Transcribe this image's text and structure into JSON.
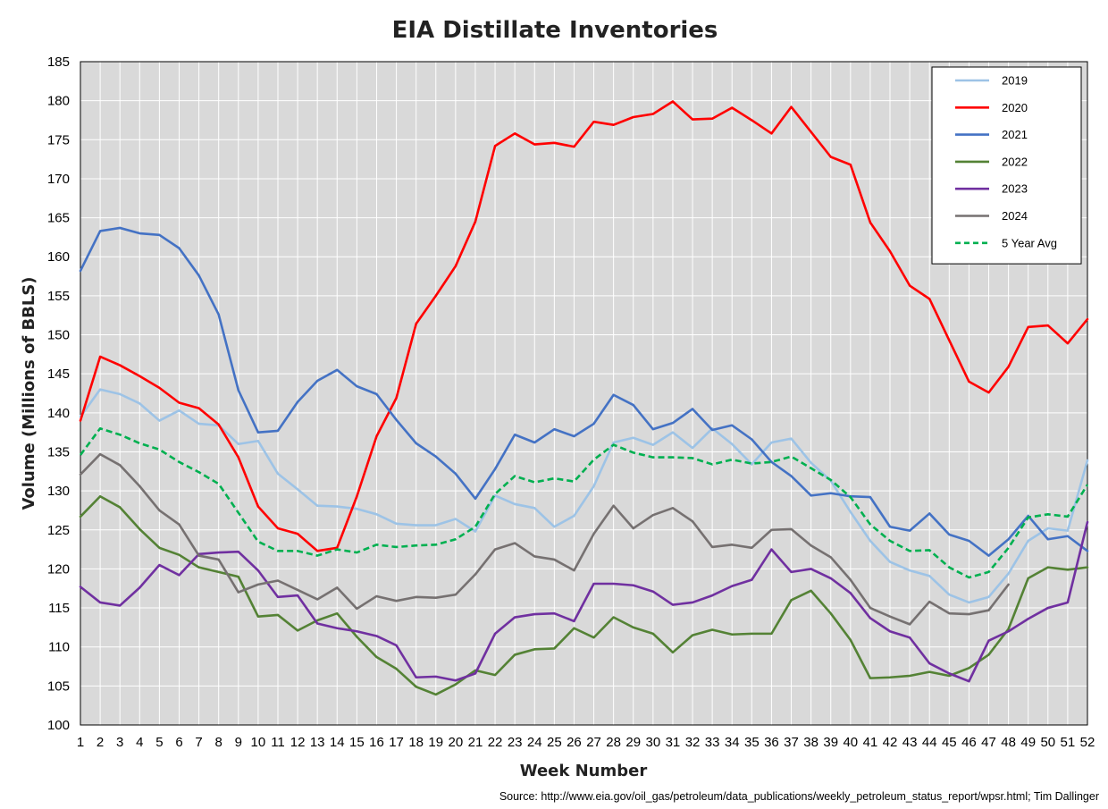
{
  "chart_data": {
    "type": "line",
    "title": "EIA Distillate Inventories",
    "xlabel": "Week Number",
    "ylabel": "Volume (Millions of BBLS)",
    "source": "Source: http://www.eia.gov/oil_gas/petroleum/data_publications/weekly_petroleum_status_report/wpsr.html; Tim Dallinger",
    "xlim": [
      1,
      52
    ],
    "ylim": [
      100,
      185
    ],
    "ytick_step": 5,
    "grid": true,
    "legend_position": "top-right",
    "x": [
      1,
      2,
      3,
      4,
      5,
      6,
      7,
      8,
      9,
      10,
      11,
      12,
      13,
      14,
      15,
      16,
      17,
      18,
      19,
      20,
      21,
      22,
      23,
      24,
      25,
      26,
      27,
      28,
      29,
      30,
      31,
      32,
      33,
      34,
      35,
      36,
      37,
      38,
      39,
      40,
      41,
      42,
      43,
      44,
      45,
      46,
      47,
      48,
      49,
      50,
      51,
      52
    ],
    "series": [
      {
        "name": "2019",
        "color": "#9dc3e6",
        "dash": false,
        "values": [
          139.5,
          143.0,
          142.4,
          141.2,
          139.0,
          140.3,
          138.6,
          138.4,
          136.0,
          136.4,
          132.2,
          130.2,
          128.1,
          128.0,
          127.7,
          127.0,
          125.8,
          125.6,
          125.6,
          126.4,
          124.8,
          129.4,
          128.3,
          127.8,
          125.4,
          126.8,
          130.6,
          136.2,
          136.8,
          135.9,
          137.5,
          135.5,
          138.0,
          136.0,
          133.4,
          136.2,
          136.7,
          133.6,
          131.3,
          127.3,
          123.6,
          120.9,
          119.8,
          119.1,
          116.7,
          115.7,
          116.4,
          119.4,
          123.6,
          125.2,
          124.9,
          133.9
        ]
      },
      {
        "name": "2020",
        "color": "#ff0000",
        "dash": false,
        "values": [
          139.0,
          147.2,
          146.1,
          144.7,
          143.2,
          141.3,
          140.6,
          138.5,
          134.3,
          128.0,
          125.2,
          124.5,
          122.3,
          122.7,
          129.3,
          137.0,
          141.9,
          151.4,
          155.0,
          158.8,
          164.5,
          174.2,
          175.8,
          174.4,
          174.6,
          174.1,
          177.3,
          176.9,
          177.9,
          178.3,
          179.9,
          177.6,
          177.7,
          179.1,
          177.5,
          175.8,
          179.2,
          176.0,
          172.8,
          171.8,
          164.4,
          160.7,
          156.3,
          154.6,
          149.3,
          144.0,
          142.6,
          145.9,
          151.0,
          151.2,
          148.9,
          152.0
        ]
      },
      {
        "name": "2021",
        "color": "#4472c4",
        "dash": false,
        "values": [
          158.2,
          163.3,
          163.7,
          163.0,
          162.8,
          161.1,
          157.6,
          152.6,
          142.9,
          137.5,
          137.7,
          141.4,
          144.1,
          145.5,
          143.4,
          142.4,
          139.1,
          136.1,
          134.4,
          132.2,
          129.0,
          132.8,
          137.2,
          136.2,
          137.9,
          137.0,
          138.6,
          142.3,
          141.0,
          137.9,
          138.7,
          140.5,
          137.8,
          138.4,
          136.6,
          133.7,
          131.9,
          129.4,
          129.7,
          129.3,
          129.2,
          125.4,
          124.9,
          127.1,
          124.4,
          123.6,
          121.7,
          123.8,
          126.8,
          123.8,
          124.2,
          122.3
        ]
      },
      {
        "name": "2022",
        "color": "#548235",
        "dash": false,
        "values": [
          126.7,
          129.3,
          127.9,
          125.1,
          122.7,
          121.8,
          120.2,
          119.6,
          119.0,
          113.9,
          114.1,
          112.1,
          113.4,
          114.3,
          111.3,
          108.7,
          107.2,
          104.9,
          103.9,
          105.2,
          107.0,
          106.4,
          109.0,
          109.7,
          109.8,
          112.4,
          111.2,
          113.8,
          112.5,
          111.7,
          109.3,
          111.5,
          112.2,
          111.6,
          111.7,
          111.7,
          116.0,
          117.2,
          114.3,
          110.9,
          106.0,
          106.1,
          106.3,
          106.8,
          106.3,
          107.3,
          109.0,
          112.3,
          118.8,
          120.2,
          119.9,
          120.2
        ]
      },
      {
        "name": "2023",
        "color": "#7030a0",
        "dash": false,
        "values": [
          117.7,
          115.7,
          115.3,
          117.6,
          120.5,
          119.2,
          121.9,
          122.1,
          122.2,
          119.8,
          116.4,
          116.6,
          113.0,
          112.4,
          112.0,
          111.4,
          110.2,
          106.1,
          106.2,
          105.7,
          106.6,
          111.7,
          113.8,
          114.2,
          114.3,
          113.3,
          118.1,
          118.1,
          117.9,
          117.1,
          115.4,
          115.7,
          116.6,
          117.8,
          118.6,
          122.5,
          119.6,
          120.0,
          118.8,
          116.9,
          113.7,
          112.0,
          111.2,
          107.9,
          106.6,
          105.6,
          110.8,
          112.0,
          113.6,
          115.0,
          115.7,
          126.0
        ]
      },
      {
        "name": "2024",
        "color": "#767171",
        "dash": false,
        "values": [
          132.1,
          134.7,
          133.3,
          130.6,
          127.5,
          125.7,
          121.7,
          121.2,
          117.0,
          118.0,
          118.5,
          117.3,
          116.1,
          117.6,
          114.9,
          116.5,
          115.9,
          116.4,
          116.3,
          116.7,
          119.3,
          122.5,
          123.3,
          121.6,
          121.2,
          119.8,
          124.5,
          128.1,
          125.2,
          126.9,
          127.8,
          126.1,
          122.8,
          123.1,
          122.7,
          125.0,
          125.1,
          123.0,
          121.5,
          118.6,
          115.0,
          113.9,
          112.9,
          115.8,
          114.3,
          114.2,
          114.7,
          118.0,
          null,
          null,
          null,
          null
        ]
      },
      {
        "name": "5 Year Avg",
        "color": "#00b050",
        "dash": true,
        "values": [
          134.6,
          138.0,
          137.2,
          136.1,
          135.3,
          133.7,
          132.4,
          130.9,
          127.2,
          123.5,
          122.3,
          122.3,
          121.7,
          122.5,
          122.1,
          123.1,
          122.8,
          123.0,
          123.1,
          123.8,
          125.4,
          129.6,
          131.9,
          131.1,
          131.6,
          131.2,
          134.0,
          135.9,
          134.9,
          134.3,
          134.3,
          134.2,
          133.4,
          134.0,
          133.5,
          133.7,
          134.4,
          132.9,
          131.4,
          129.2,
          125.7,
          123.6,
          122.3,
          122.4,
          120.2,
          118.9,
          119.6,
          122.7,
          126.6,
          127.0,
          126.7,
          130.8
        ]
      }
    ]
  }
}
